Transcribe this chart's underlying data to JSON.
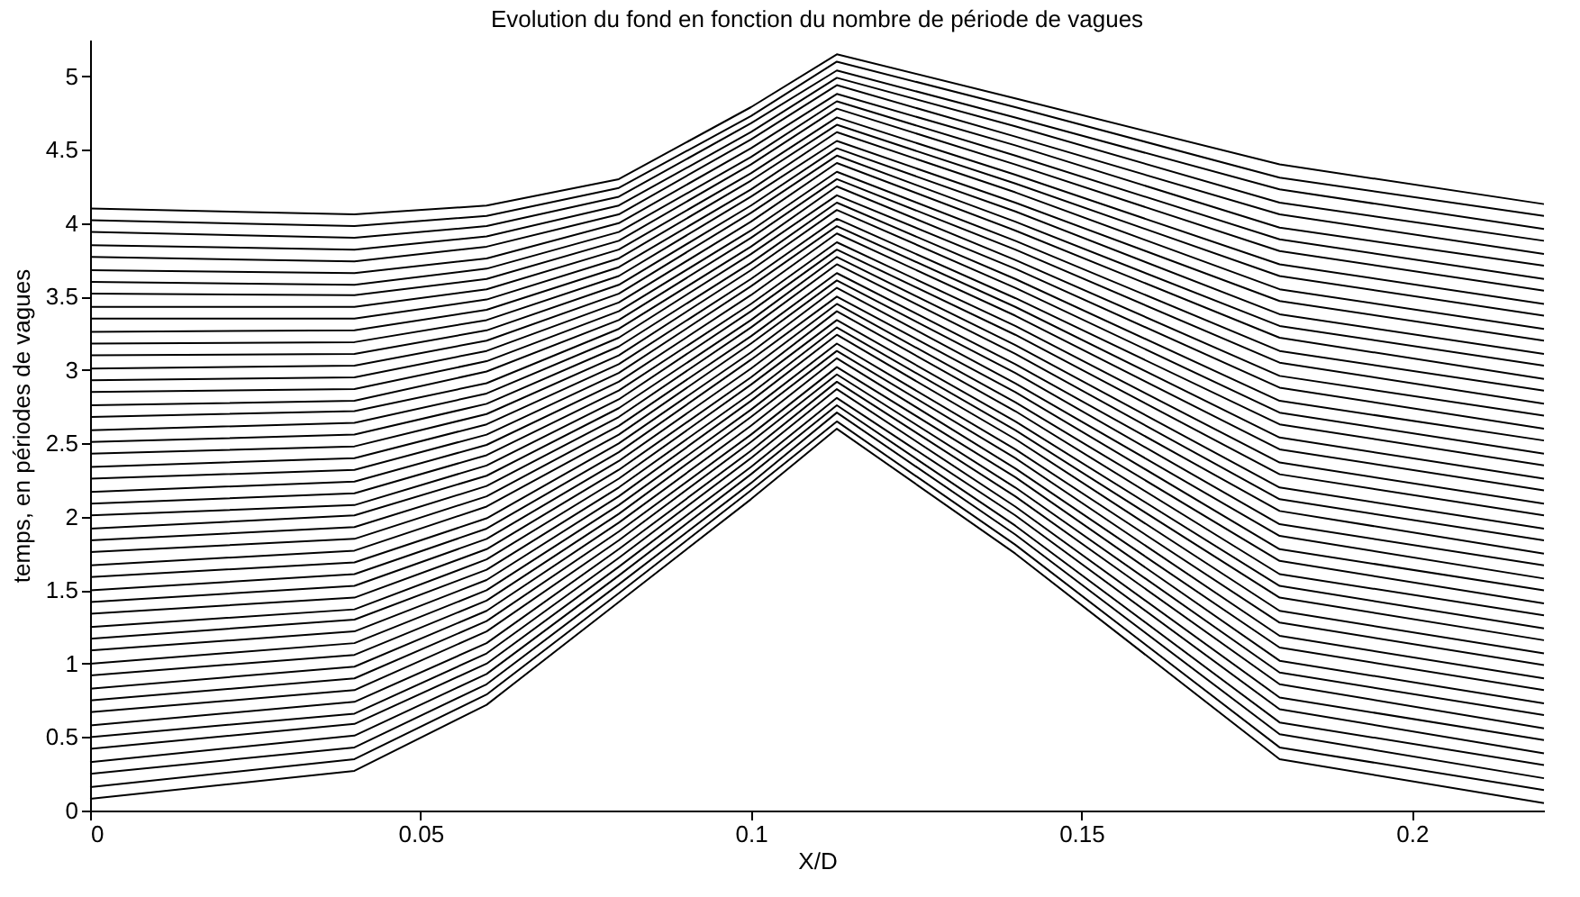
{
  "chart_data": {
    "type": "line",
    "title": "Evolution du fond en fonction du nombre de période de vagues",
    "xlabel": "X/D",
    "ylabel": "temps, en périodes de vagues",
    "x": [
      0,
      0.04,
      0.06,
      0.08,
      0.1,
      0.113,
      0.14,
      0.18,
      0.22
    ],
    "xlim": [
      0,
      0.22
    ],
    "xticks": [
      0,
      0.05,
      0.1,
      0.15,
      0.2
    ],
    "ylim": [
      0,
      5.25
    ],
    "yticks": [
      0,
      0.5,
      1,
      1.5,
      2,
      2.5,
      3,
      3.5,
      4,
      4.5,
      5
    ],
    "grid": false,
    "legend": false,
    "marker": "none",
    "line_style": "solid",
    "series": [
      {
        "color": "#000000",
        "values": [
          0.08,
          0.27,
          0.72,
          1.42,
          2.12,
          2.6,
          1.75,
          0.35,
          0.05
        ]
      },
      {
        "color": "#000000",
        "values": [
          0.16,
          0.35,
          0.79,
          1.48,
          2.18,
          2.65,
          1.81,
          0.43,
          0.14
        ]
      },
      {
        "color": "#000000",
        "values": [
          0.25,
          0.43,
          0.86,
          1.54,
          2.23,
          2.71,
          1.88,
          0.52,
          0.22
        ]
      },
      {
        "color": "#000000",
        "values": [
          0.33,
          0.51,
          0.93,
          1.6,
          2.29,
          2.76,
          1.94,
          0.6,
          0.31
        ]
      },
      {
        "color": "#000000",
        "values": [
          0.42,
          0.59,
          1.0,
          1.66,
          2.34,
          2.81,
          2.01,
          0.69,
          0.39
        ]
      },
      {
        "color": "#000000",
        "values": [
          0.5,
          0.66,
          1.07,
          1.72,
          2.4,
          2.87,
          2.07,
          0.77,
          0.48
        ]
      },
      {
        "color": "#000000",
        "values": [
          0.58,
          0.74,
          1.14,
          1.78,
          2.45,
          2.92,
          2.14,
          0.86,
          0.56
        ]
      },
      {
        "color": "#000000",
        "values": [
          0.67,
          0.82,
          1.22,
          1.84,
          2.51,
          2.97,
          2.2,
          0.94,
          0.65
        ]
      },
      {
        "color": "#000000",
        "values": [
          0.75,
          0.9,
          1.29,
          1.9,
          2.56,
          3.02,
          2.27,
          1.02,
          0.73
        ]
      },
      {
        "color": "#000000",
        "values": [
          0.83,
          0.98,
          1.36,
          1.96,
          2.62,
          3.08,
          2.33,
          1.11,
          0.82
        ]
      },
      {
        "color": "#000000",
        "values": [
          0.92,
          1.06,
          1.43,
          2.02,
          2.68,
          3.13,
          2.4,
          1.19,
          0.9
        ]
      },
      {
        "color": "#000000",
        "values": [
          1.0,
          1.14,
          1.5,
          2.08,
          2.73,
          3.18,
          2.46,
          1.28,
          0.99
        ]
      },
      {
        "color": "#000000",
        "values": [
          1.09,
          1.22,
          1.57,
          2.14,
          2.79,
          3.24,
          2.53,
          1.36,
          1.07
        ]
      },
      {
        "color": "#000000",
        "values": [
          1.17,
          1.3,
          1.64,
          2.2,
          2.84,
          3.29,
          2.59,
          1.45,
          1.16
        ]
      },
      {
        "color": "#000000",
        "values": [
          1.25,
          1.37,
          1.71,
          2.26,
          2.9,
          3.34,
          2.65,
          1.53,
          1.24
        ]
      },
      {
        "color": "#000000",
        "values": [
          1.34,
          1.45,
          1.78,
          2.32,
          2.95,
          3.4,
          2.72,
          1.61,
          1.33
        ]
      },
      {
        "color": "#000000",
        "values": [
          1.42,
          1.53,
          1.85,
          2.38,
          3.01,
          3.45,
          2.78,
          1.7,
          1.41
        ]
      },
      {
        "color": "#000000",
        "values": [
          1.5,
          1.61,
          1.92,
          2.44,
          3.07,
          3.5,
          2.85,
          1.78,
          1.5
        ]
      },
      {
        "color": "#000000",
        "values": [
          1.59,
          1.69,
          1.99,
          2.5,
          3.12,
          3.56,
          2.91,
          1.87,
          1.58
        ]
      },
      {
        "color": "#000000",
        "values": [
          1.67,
          1.77,
          2.07,
          2.56,
          3.18,
          3.61,
          2.98,
          1.95,
          1.67
        ]
      },
      {
        "color": "#000000",
        "values": [
          1.76,
          1.85,
          2.14,
          2.62,
          3.23,
          3.66,
          3.04,
          2.04,
          1.75
        ]
      },
      {
        "color": "#000000",
        "values": [
          1.84,
          1.93,
          2.21,
          2.68,
          3.29,
          3.72,
          3.11,
          2.12,
          1.84
        ]
      },
      {
        "color": "#000000",
        "values": [
          1.92,
          2.01,
          2.28,
          2.74,
          3.34,
          3.77,
          3.17,
          2.2,
          1.92
        ]
      },
      {
        "color": "#000000",
        "values": [
          2.01,
          2.08,
          2.35,
          2.8,
          3.4,
          3.82,
          3.24,
          2.29,
          2.01
        ]
      },
      {
        "color": "#000000",
        "values": [
          2.09,
          2.16,
          2.42,
          2.86,
          3.45,
          3.87,
          3.3,
          2.37,
          2.09
        ]
      },
      {
        "color": "#000000",
        "values": [
          2.17,
          2.24,
          2.49,
          2.92,
          3.51,
          3.93,
          3.37,
          2.46,
          2.18
        ]
      },
      {
        "color": "#000000",
        "values": [
          2.26,
          2.32,
          2.56,
          2.98,
          3.57,
          3.98,
          3.43,
          2.54,
          2.26
        ]
      },
      {
        "color": "#000000",
        "values": [
          2.34,
          2.4,
          2.63,
          3.04,
          3.62,
          4.03,
          3.49,
          2.63,
          2.35
        ]
      },
      {
        "color": "#000000",
        "values": [
          2.43,
          2.48,
          2.7,
          3.1,
          3.68,
          4.09,
          3.56,
          2.71,
          2.43
        ]
      },
      {
        "color": "#000000",
        "values": [
          2.51,
          2.56,
          2.77,
          3.16,
          3.73,
          4.14,
          3.62,
          2.79,
          2.52
        ]
      },
      {
        "color": "#000000",
        "values": [
          2.59,
          2.64,
          2.84,
          3.22,
          3.79,
          4.19,
          3.69,
          2.88,
          2.6
        ]
      },
      {
        "color": "#000000",
        "values": [
          2.68,
          2.72,
          2.91,
          3.28,
          3.84,
          4.25,
          3.75,
          2.96,
          2.69
        ]
      },
      {
        "color": "#000000",
        "values": [
          2.76,
          2.79,
          2.99,
          3.34,
          3.9,
          4.3,
          3.82,
          3.05,
          2.77
        ]
      },
      {
        "color": "#000000",
        "values": [
          2.85,
          2.87,
          3.06,
          3.4,
          3.95,
          4.35,
          3.88,
          3.13,
          2.86
        ]
      },
      {
        "color": "#000000",
        "values": [
          2.93,
          2.95,
          3.13,
          3.46,
          4.01,
          4.41,
          3.95,
          3.22,
          2.94
        ]
      },
      {
        "color": "#000000",
        "values": [
          3.01,
          3.03,
          3.2,
          3.52,
          4.07,
          4.46,
          4.01,
          3.3,
          3.03
        ]
      },
      {
        "color": "#000000",
        "values": [
          3.1,
          3.11,
          3.27,
          3.58,
          4.12,
          4.51,
          4.08,
          3.38,
          3.11
        ]
      },
      {
        "color": "#000000",
        "values": [
          3.18,
          3.19,
          3.34,
          3.64,
          4.18,
          4.56,
          4.14,
          3.47,
          3.2
        ]
      },
      {
        "color": "#000000",
        "values": [
          3.26,
          3.27,
          3.41,
          3.7,
          4.23,
          4.62,
          4.21,
          3.55,
          3.28
        ]
      },
      {
        "color": "#000000",
        "values": [
          3.35,
          3.35,
          3.48,
          3.76,
          4.29,
          4.67,
          4.27,
          3.64,
          3.37
        ]
      },
      {
        "color": "#000000",
        "values": [
          3.43,
          3.43,
          3.55,
          3.82,
          4.34,
          4.72,
          4.33,
          3.72,
          3.45
        ]
      },
      {
        "color": "#000000",
        "values": [
          3.52,
          3.51,
          3.62,
          3.88,
          4.4,
          4.78,
          4.4,
          3.81,
          3.54
        ]
      },
      {
        "color": "#000000",
        "values": [
          3.6,
          3.58,
          3.69,
          3.94,
          4.45,
          4.83,
          4.46,
          3.89,
          3.62
        ]
      },
      {
        "color": "#000000",
        "values": [
          3.68,
          3.66,
          3.76,
          4.0,
          4.51,
          4.88,
          4.53,
          3.97,
          3.71
        ]
      },
      {
        "color": "#000000",
        "values": [
          3.77,
          3.74,
          3.84,
          4.06,
          4.57,
          4.94,
          4.59,
          4.06,
          3.79
        ]
      },
      {
        "color": "#000000",
        "values": [
          3.85,
          3.82,
          3.91,
          4.12,
          4.62,
          4.99,
          4.66,
          4.14,
          3.88
        ]
      },
      {
        "color": "#000000",
        "values": [
          3.94,
          3.9,
          3.98,
          4.18,
          4.68,
          5.04,
          4.72,
          4.23,
          3.96
        ]
      },
      {
        "color": "#000000",
        "values": [
          4.02,
          3.98,
          4.05,
          4.24,
          4.73,
          5.1,
          4.79,
          4.31,
          4.05
        ]
      },
      {
        "color": "#000000",
        "values": [
          4.1,
          4.06,
          4.12,
          4.3,
          4.79,
          5.15,
          4.85,
          4.4,
          4.13
        ]
      }
    ]
  }
}
